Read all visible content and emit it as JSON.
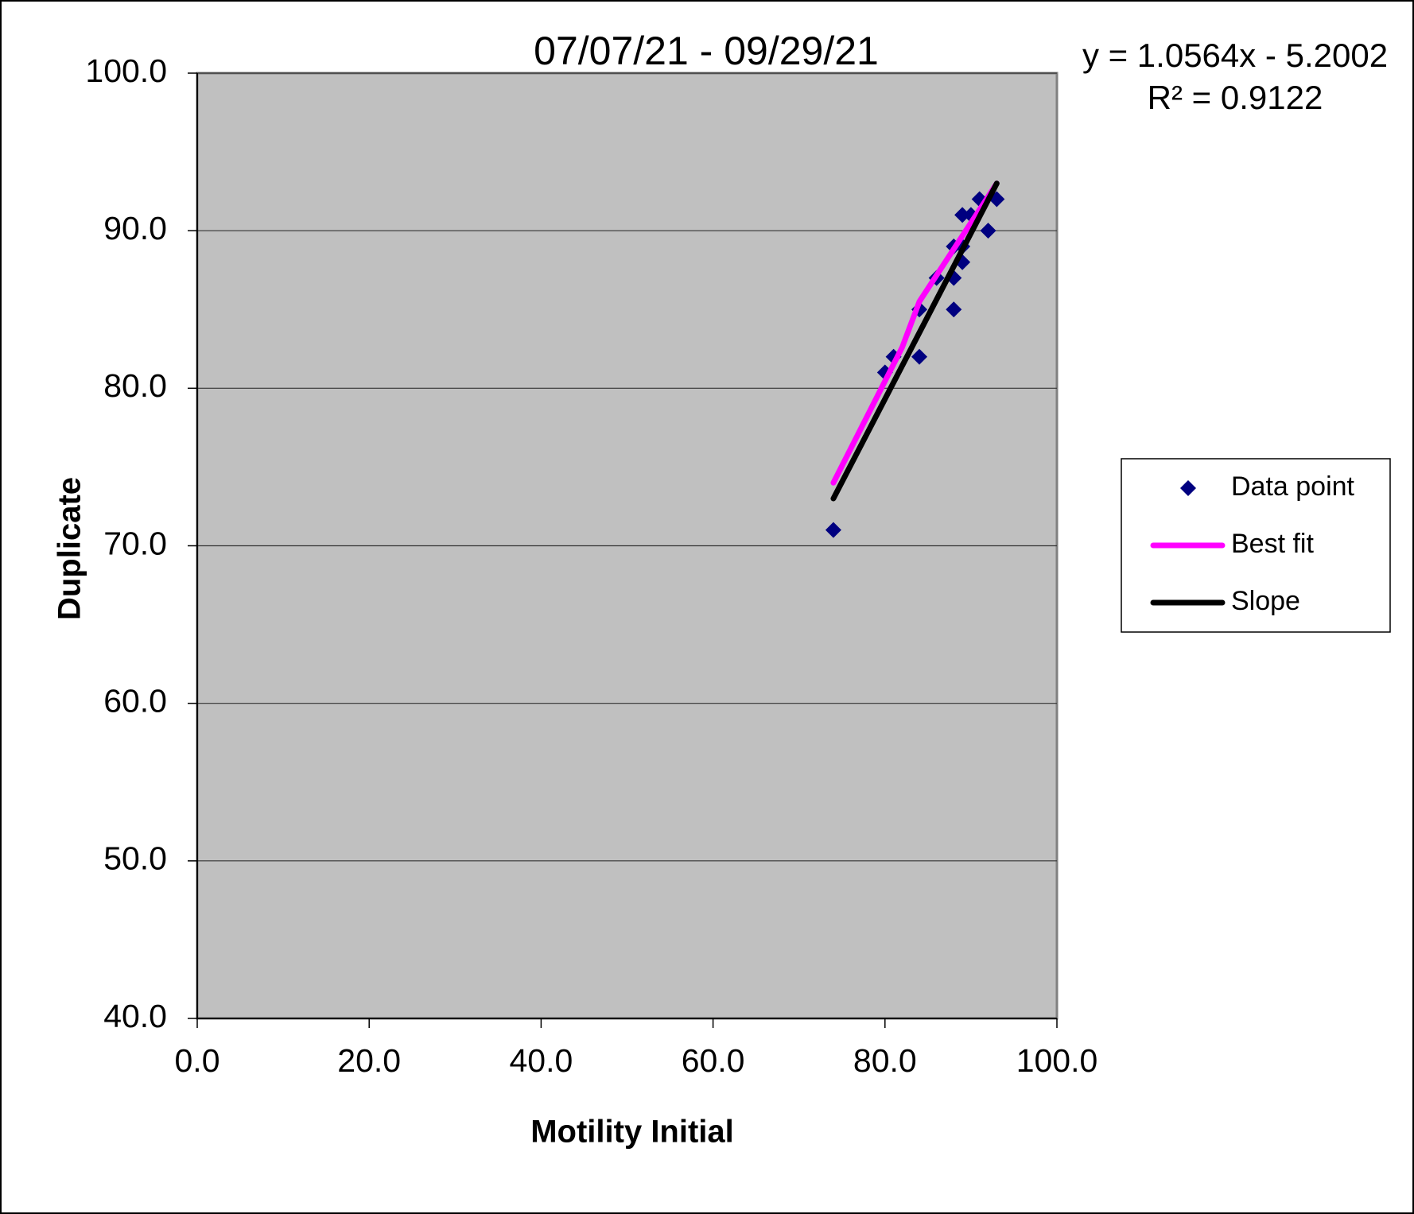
{
  "chart_data": {
    "type": "scatter",
    "title": "07/07/21 - 09/29/21",
    "x_label": "Motility Initial",
    "y_label": "Duplicate",
    "annotations": [
      "y = 1.0564x - 5.2002",
      "R² = 0.9122"
    ],
    "xlim": [
      0,
      100
    ],
    "ylim": [
      40,
      100
    ],
    "xticks": [
      {
        "value": 0,
        "label": "0.0"
      },
      {
        "value": 20,
        "label": "20.0"
      },
      {
        "value": 40,
        "label": "40.0"
      },
      {
        "value": 60,
        "label": "60.0"
      },
      {
        "value": 80,
        "label": "80.0"
      },
      {
        "value": 100,
        "label": "100.0"
      }
    ],
    "yticks": [
      {
        "value": 40,
        "label": "40.0"
      },
      {
        "value": 50,
        "label": "50.0"
      },
      {
        "value": 60,
        "label": "60.0"
      },
      {
        "value": 70,
        "label": "70.0"
      },
      {
        "value": 80,
        "label": "80.0"
      },
      {
        "value": 90,
        "label": "90.0"
      },
      {
        "value": 100,
        "label": "100.0"
      }
    ],
    "grid": true,
    "legend": "right",
    "series": [
      {
        "name": "Data point",
        "color": "#000080",
        "mode": "markers",
        "x": [
          74,
          80,
          81,
          84,
          84,
          86,
          88,
          88,
          88,
          89,
          89,
          90,
          89,
          91,
          92,
          93
        ],
        "values": [
          71,
          81,
          82,
          85,
          82,
          87,
          85,
          87,
          89,
          88,
          91,
          91,
          89,
          92,
          90,
          92
        ]
      },
      {
        "name": "Best fit",
        "color": "#ff00ff",
        "mode": "line",
        "x": [
          74,
          82,
          84,
          93
        ],
        "values": [
          74,
          82.6,
          85.5,
          93
        ]
      },
      {
        "name": "Slope",
        "color": "#000000",
        "mode": "line",
        "x": [
          74,
          93
        ],
        "values": [
          73,
          93
        ]
      }
    ]
  }
}
